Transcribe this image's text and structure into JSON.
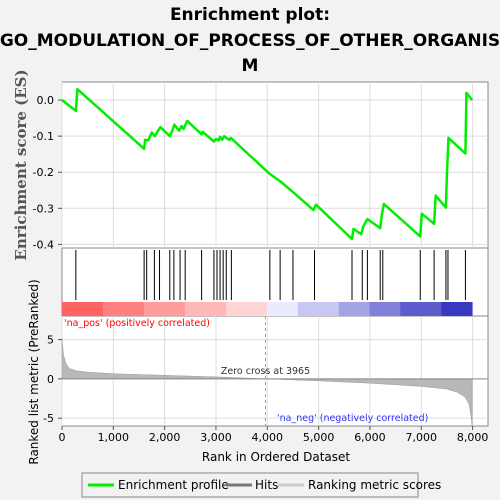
{
  "title_lines": [
    "Enrichment plot:",
    "GO_MODULATION_OF_PROCESS_OF_OTHER_ORGANIS",
    "M"
  ],
  "colors": {
    "profile": "#00ee00",
    "hits": "#000000",
    "metric_fill": "#b8b8b8",
    "pos_label": "#ff0000",
    "neg_label": "#3333ff",
    "background": "#f2f2f2"
  },
  "chart_data": [
    {
      "type": "line",
      "name": "enrichment-plot",
      "ylabel": "Enrichment score (ES)",
      "ylim": [
        -0.41,
        0.05
      ],
      "yticks": [
        0.0,
        -0.1,
        -0.2,
        -0.3,
        -0.4
      ],
      "ytick_labels": [
        "0.0",
        "-0.1",
        "-0.2",
        "-0.3",
        "-0.4"
      ],
      "xlim": [
        0,
        8300
      ],
      "grid": true,
      "x": [
        0,
        270,
        300,
        1600,
        1620,
        1680,
        1750,
        1810,
        1870,
        1920,
        2100,
        2150,
        2190,
        2280,
        2330,
        2370,
        2440,
        2720,
        2740,
        2960,
        3000,
        3050,
        3080,
        3120,
        3160,
        3200,
        3260,
        3290,
        4050,
        4250,
        4500,
        4900,
        4950,
        5650,
        5680,
        5830,
        5870,
        5950,
        6200,
        6230,
        6270,
        6980,
        7010,
        7250,
        7280,
        7480,
        7500,
        7530,
        7860,
        7880,
        7990
      ],
      "values": [
        0.0,
        -0.03,
        0.03,
        -0.135,
        -0.11,
        -0.112,
        -0.09,
        -0.1,
        -0.085,
        -0.075,
        -0.1,
        -0.085,
        -0.068,
        -0.085,
        -0.072,
        -0.08,
        -0.058,
        -0.095,
        -0.088,
        -0.115,
        -0.108,
        -0.112,
        -0.102,
        -0.11,
        -0.1,
        -0.105,
        -0.11,
        -0.105,
        -0.205,
        -0.225,
        -0.255,
        -0.305,
        -0.29,
        -0.385,
        -0.357,
        -0.372,
        -0.35,
        -0.33,
        -0.355,
        -0.32,
        -0.288,
        -0.378,
        -0.315,
        -0.343,
        -0.265,
        -0.298,
        -0.205,
        -0.105,
        -0.148,
        0.02,
        0.0
      ]
    },
    {
      "type": "scatter",
      "name": "hits",
      "x": [
        270,
        1600,
        1650,
        1800,
        1900,
        2100,
        2180,
        2300,
        2400,
        2720,
        2960,
        3020,
        3080,
        3140,
        3200,
        3300,
        4050,
        4250,
        4500,
        4920,
        5650,
        5850,
        5950,
        6200,
        6250,
        6980,
        7250,
        7480,
        7520,
        7860
      ]
    },
    {
      "type": "area",
      "name": "ranked-list-metric",
      "ylabel": "Ranked list metric (PreRanked)",
      "xlabel": "Rank in Ordered Dataset",
      "ylim": [
        -6,
        8
      ],
      "yticks": [
        -5,
        0,
        5
      ],
      "xlim": [
        0,
        8300
      ],
      "xticks": [
        0,
        1000,
        2000,
        3000,
        4000,
        5000,
        6000,
        7000,
        8000
      ],
      "xtick_labels": [
        "0",
        "1,000",
        "2,000",
        "3,000",
        "4,000",
        "5,000",
        "6,000",
        "7,000",
        "8,000"
      ],
      "x": [
        0,
        30,
        80,
        150,
        300,
        500,
        1000,
        2000,
        3000,
        3965,
        5000,
        6000,
        7000,
        7500,
        7700,
        7850,
        7930,
        7970,
        7990
      ],
      "values": [
        5.1,
        3.0,
        1.9,
        1.3,
        1.0,
        0.85,
        0.65,
        0.45,
        0.25,
        0.0,
        -0.25,
        -0.55,
        -0.95,
        -1.3,
        -1.7,
        -2.3,
        -3.2,
        -4.8,
        -6.0
      ]
    }
  ],
  "zero_cross": {
    "rank": 3965,
    "label": "Zero cross at 3965"
  },
  "pos_label": "'na_pos' (positively correlated)",
  "neg_label": "'na_neg' (negatively correlated)",
  "legend": {
    "items": [
      {
        "label": "Enrichment profile",
        "color": "#00ee00"
      },
      {
        "label": "Hits",
        "color": "#777777"
      },
      {
        "label": "Ranking metric scores",
        "color": "#cccccc"
      }
    ]
  }
}
